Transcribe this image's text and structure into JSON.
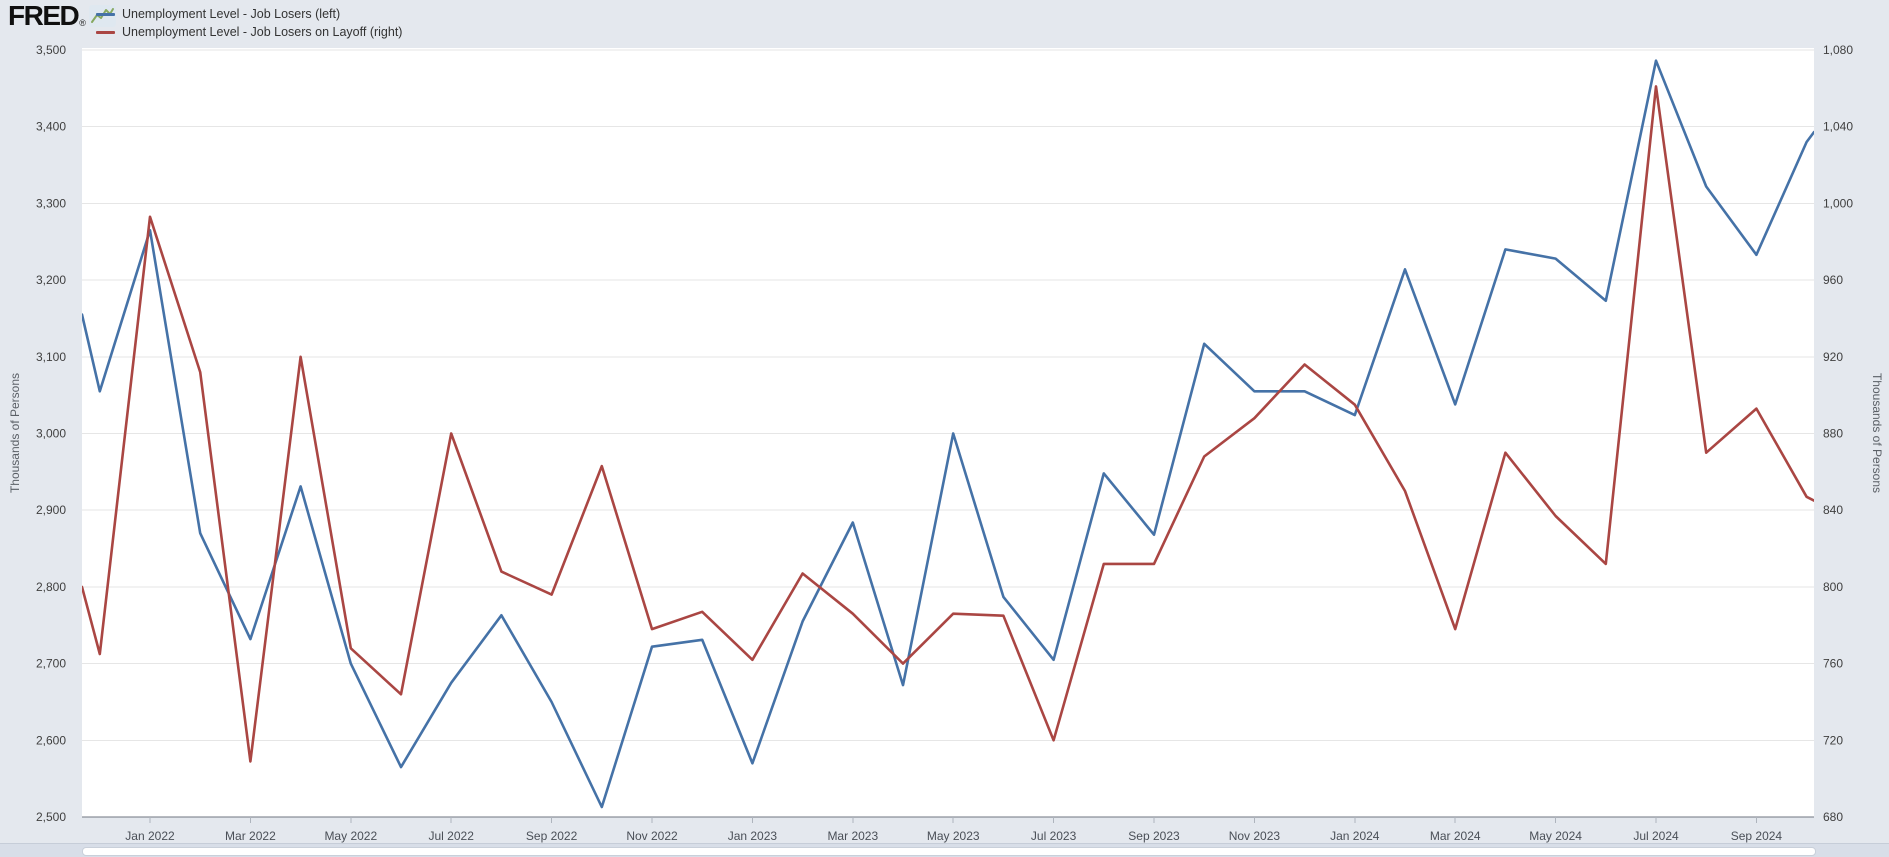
{
  "header": {
    "logo_text": "FRED",
    "logo_reg": "®",
    "logo_icon": "sparkline-chart-icon",
    "legend": [
      {
        "label": "Unemployment Level - Job Losers (left)",
        "color": "#4572a7"
      },
      {
        "label": "Unemployment Level - Job Losers on Layoff (right)",
        "color": "#aa4643"
      }
    ]
  },
  "chart_data": {
    "type": "line",
    "title": "",
    "grid": "horizontal",
    "legend_position": "top-left",
    "plot_background": "#ffffff",
    "page_background": "#e4e8ee",
    "gridline_color": "#e6e6e6",
    "axis_line_color": "#6f7680",
    "note": "monthly data; first and last points are clipped at the plot edges",
    "x": [
      "Nov 2021",
      "Dec 2021",
      "Jan 2022",
      "Feb 2022",
      "Mar 2022",
      "Apr 2022",
      "May 2022",
      "Jun 2022",
      "Jul 2022",
      "Aug 2022",
      "Sep 2022",
      "Oct 2022",
      "Nov 2022",
      "Dec 2022",
      "Jan 2023",
      "Feb 2023",
      "Mar 2023",
      "Apr 2023",
      "May 2023",
      "Jun 2023",
      "Jul 2023",
      "Aug 2023",
      "Sep 2023",
      "Oct 2023",
      "Nov 2023",
      "Dec 2023",
      "Jan 2024",
      "Feb 2024",
      "Mar 2024",
      "Apr 2024",
      "May 2024",
      "Jun 2024",
      "Jul 2024",
      "Aug 2024",
      "Sep 2024",
      "Oct 2024",
      "Nov 2024"
    ],
    "x_axis_tick_labels": [
      "Jan 2022",
      "Mar 2022",
      "May 2022",
      "Jul 2022",
      "Sep 2022",
      "Nov 2022",
      "Jan 2023",
      "Mar 2023",
      "May 2023",
      "Jul 2023",
      "Sep 2023",
      "Nov 2023",
      "Jan 2024",
      "Mar 2024",
      "May 2024",
      "Jul 2024",
      "Sep 2024"
    ],
    "left_axis": {
      "label": "Thousands of Persons",
      "range": [
        2500,
        3500
      ],
      "tick_labels": [
        "3,500",
        "3,400",
        "3,300",
        "3,200",
        "3,100",
        "3,000",
        "2,900",
        "2,800",
        "2,700",
        "2,600",
        "2,500"
      ]
    },
    "right_axis": {
      "label": "Thousands of Persons",
      "range": [
        680,
        1080
      ],
      "tick_labels": [
        "1,080",
        "1,040",
        "1,000",
        "960",
        "920",
        "880",
        "840",
        "800",
        "760",
        "720",
        "680"
      ]
    },
    "series": [
      {
        "name": "Unemployment Level - Job Losers (left)",
        "axis": "left",
        "color": "#4572a7",
        "values": [
          3155,
          3055,
          3265,
          2870,
          2732,
          2931,
          2700,
          2565,
          2675,
          2763,
          2650,
          2513,
          2722,
          2731,
          2570,
          2755,
          2884,
          2672,
          3000,
          2787,
          2705,
          2948,
          2868,
          3117,
          3055,
          3055,
          3024,
          3214,
          3038,
          3240,
          3228,
          3173,
          3486,
          3322,
          3233,
          3380,
          3393
        ]
      },
      {
        "name": "Unemployment Level - Job Losers on Layoff (right)",
        "axis": "right",
        "color": "#aa4643",
        "values": [
          800,
          765,
          993,
          912,
          709,
          920,
          768,
          744,
          880,
          808,
          796,
          863,
          778,
          787,
          762,
          807,
          786,
          760,
          786,
          785,
          720,
          812,
          812,
          868,
          888,
          916,
          895,
          850,
          778,
          870,
          837,
          812,
          1061,
          870,
          893,
          847,
          845
        ]
      }
    ]
  },
  "footer": {
    "slider": "date-range-slider"
  }
}
